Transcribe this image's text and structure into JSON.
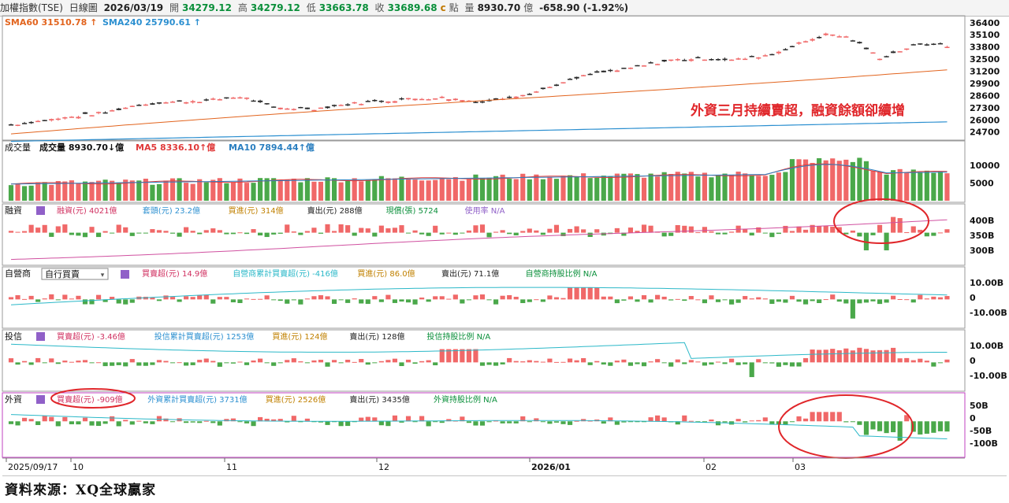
{
  "header": {
    "instrument": "加權指數(TSE)",
    "period": "日線圖",
    "date": "2026/03/19",
    "open_label": "開",
    "open": "34279.12",
    "high_label": "高",
    "high": "34279.12",
    "low_label": "低",
    "low": "33663.78",
    "close_label": "收",
    "close": "33689.68",
    "c_marker": "c",
    "points_label": "點",
    "volume_label": "量",
    "volume": "8930.70",
    "volume_unit": "億",
    "change": "-658.90 (-1.92%)"
  },
  "colors": {
    "up": "#f06868",
    "down": "#2a2a2a",
    "vol_up": "#f06868",
    "vol_down": "#4aa84a",
    "sma60": "#e2641e",
    "sma240": "#2b8fd0",
    "ma5": "#e03a3a",
    "ma10": "#2b7fc0",
    "annotation": "#e0262a",
    "foreign_border": "#c040c0"
  },
  "panels": {
    "price": {
      "sma60_label": "SMA60 31510.78",
      "sma240_label": "SMA240 25790.61",
      "annotation": "外資三月持續賣超，融資餘額卻續增",
      "y_ticks": [
        "36400",
        "35100",
        "33800",
        "32500",
        "31200",
        "29900",
        "28600",
        "27300",
        "26000",
        "24700"
      ]
    },
    "volume": {
      "title": "成交量",
      "vol_label": "成交量",
      "vol_value": "8930.70",
      "ma5_label": "MA5 8336.10",
      "ma10_label": "MA10 7894.44",
      "unit": "億",
      "y_ticks": [
        "10000",
        "5000"
      ]
    },
    "margin": {
      "title": "融資",
      "items": [
        "融資(元) 4021億",
        "套頭(元) 23.2億",
        "買進(元) 314億",
        "賣出(元) 288億",
        "現償(張) 5724",
        "使用率 N/A"
      ],
      "y_ticks": [
        "400B",
        "350B",
        "300B"
      ]
    },
    "dealer": {
      "title": "自營商",
      "select_value": "自行買賣",
      "items": [
        "買賣超(元) 14.9億",
        "自營商累計買賣超(元) -416億",
        "買進(元) 86.0億",
        "賣出(元) 71.1億",
        "自營商持股比例 N/A"
      ],
      "y_ticks": [
        "10.00B",
        "0",
        "-10.00B"
      ]
    },
    "trust": {
      "title": "投信",
      "items": [
        "買賣超(元) -3.46億",
        "投信累計買賣超(元) 1253億",
        "買進(元) 124億",
        "賣出(元) 128億",
        "投信持股比例 N/A"
      ],
      "y_ticks": [
        "10.00B",
        "0",
        "-10.00B"
      ]
    },
    "foreign": {
      "title": "外資",
      "items": [
        "買賣超(元) -909億",
        "外資累計買賣超(元) 3731億",
        "買進(元) 2526億",
        "賣出(元) 3435億",
        "外資持股比例 N/A"
      ],
      "y_ticks": [
        "50B",
        "0",
        "-50B",
        "-100B"
      ]
    }
  },
  "x_axis": [
    "2025/09/17",
    "10",
    "11",
    "12",
    "2026/01",
    "02",
    "03"
  ],
  "source": "資料來源：XQ全球贏家",
  "chart_data": [
    {
      "type": "candlestick",
      "title": "加權指數(TSE) 日線圖",
      "period": "2025/09/17 - 2026/03/19",
      "ylim": [
        24000,
        36800
      ],
      "series_summary": "index rises from ~25500 in Sep 2025 to peak ~35200 in late Feb 2026, then falls back to ~33700 in March",
      "last": {
        "date": "2026/03/19",
        "open": 34279.12,
        "high": 34279.12,
        "low": 33663.78,
        "close": 33689.68
      },
      "sma60_last": 31510.78,
      "sma240_last": 25790.61
    },
    {
      "type": "bar",
      "title": "成交量",
      "unit": "億",
      "last": 8930.7,
      "ma5": 8336.1,
      "ma10": 7894.44,
      "ylim": [
        0,
        12000
      ]
    },
    {
      "type": "bar",
      "title": "融資",
      "unit": "億",
      "balance_last": 4021,
      "buy": 314,
      "sell": 288
    },
    {
      "type": "bar",
      "title": "自營商 買賣超",
      "unit": "億",
      "last": 14.9,
      "cumulative": -416,
      "buy": 86.0,
      "sell": 71.1
    },
    {
      "type": "bar",
      "title": "投信 買賣超",
      "unit": "億",
      "last": -3.46,
      "cumulative": 1253,
      "buy": 124,
      "sell": 128
    },
    {
      "type": "bar",
      "title": "外資 買賣超",
      "unit": "億",
      "last": -909,
      "cumulative": 3731,
      "buy": 2526,
      "sell": 3435
    }
  ]
}
